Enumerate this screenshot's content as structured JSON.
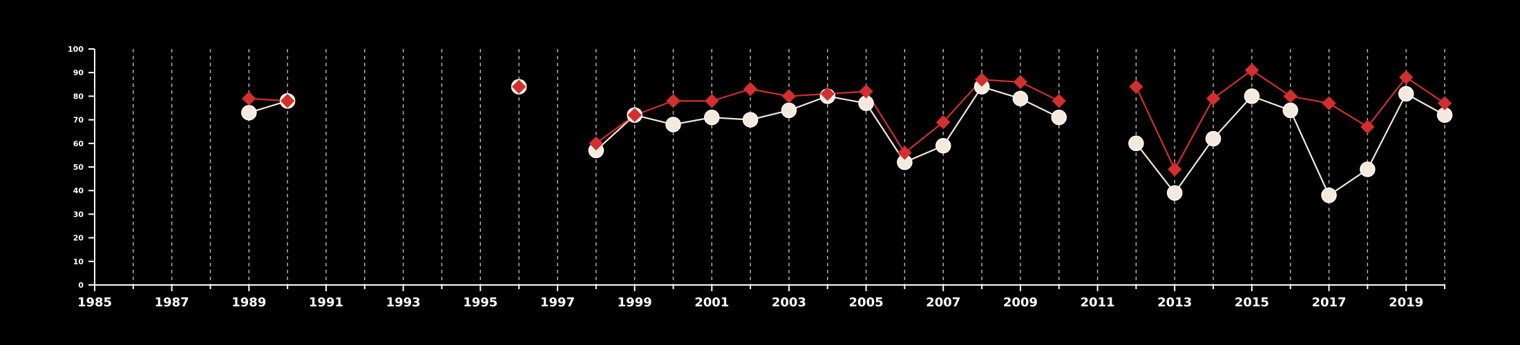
{
  "chart_data": {
    "type": "line",
    "x_range": [
      1985,
      2020
    ],
    "ylim": [
      0,
      100
    ],
    "yticks": [
      0,
      10,
      20,
      30,
      40,
      50,
      60,
      70,
      80,
      90,
      100
    ],
    "xtick_labels": [
      1985,
      1987,
      1989,
      1991,
      1993,
      1995,
      1997,
      1999,
      2001,
      2003,
      2005,
      2007,
      2009,
      2011,
      2013,
      2015,
      2017,
      2019
    ],
    "grid": "vertical dashed at every year",
    "legend": "none",
    "series": [
      {
        "color": "#f5e9dc",
        "marker": "circle",
        "points": [
          [
            1989,
            73
          ],
          [
            1990,
            78
          ],
          [
            1996,
            84
          ],
          [
            1998,
            57
          ],
          [
            1999,
            72
          ],
          [
            2000,
            68
          ],
          [
            2001,
            71
          ],
          [
            2002,
            70
          ],
          [
            2003,
            74
          ],
          [
            2004,
            80
          ],
          [
            2005,
            77
          ],
          [
            2006,
            52
          ],
          [
            2007,
            59
          ],
          [
            2008,
            84
          ],
          [
            2009,
            79
          ],
          [
            2010,
            71
          ],
          [
            2012,
            60
          ],
          [
            2013,
            39
          ],
          [
            2014,
            62
          ],
          [
            2015,
            80
          ],
          [
            2016,
            74
          ],
          [
            2017,
            38
          ],
          [
            2018,
            49
          ],
          [
            2019,
            81
          ],
          [
            2020,
            72
          ]
        ]
      },
      {
        "color": "#d32f2f",
        "marker": "diamond",
        "points": [
          [
            1989,
            79
          ],
          [
            1990,
            78
          ],
          [
            1996,
            84
          ],
          [
            1998,
            60
          ],
          [
            1999,
            72
          ],
          [
            2000,
            78
          ],
          [
            2001,
            78
          ],
          [
            2002,
            83
          ],
          [
            2003,
            80
          ],
          [
            2004,
            81
          ],
          [
            2005,
            82
          ],
          [
            2006,
            56
          ],
          [
            2007,
            69
          ],
          [
            2008,
            87
          ],
          [
            2009,
            86
          ],
          [
            2010,
            78
          ],
          [
            2012,
            84
          ],
          [
            2013,
            49
          ],
          [
            2014,
            79
          ],
          [
            2015,
            91
          ],
          [
            2016,
            80
          ],
          [
            2017,
            77
          ],
          [
            2018,
            67
          ],
          [
            2019,
            88
          ],
          [
            2020,
            77
          ]
        ]
      }
    ]
  }
}
